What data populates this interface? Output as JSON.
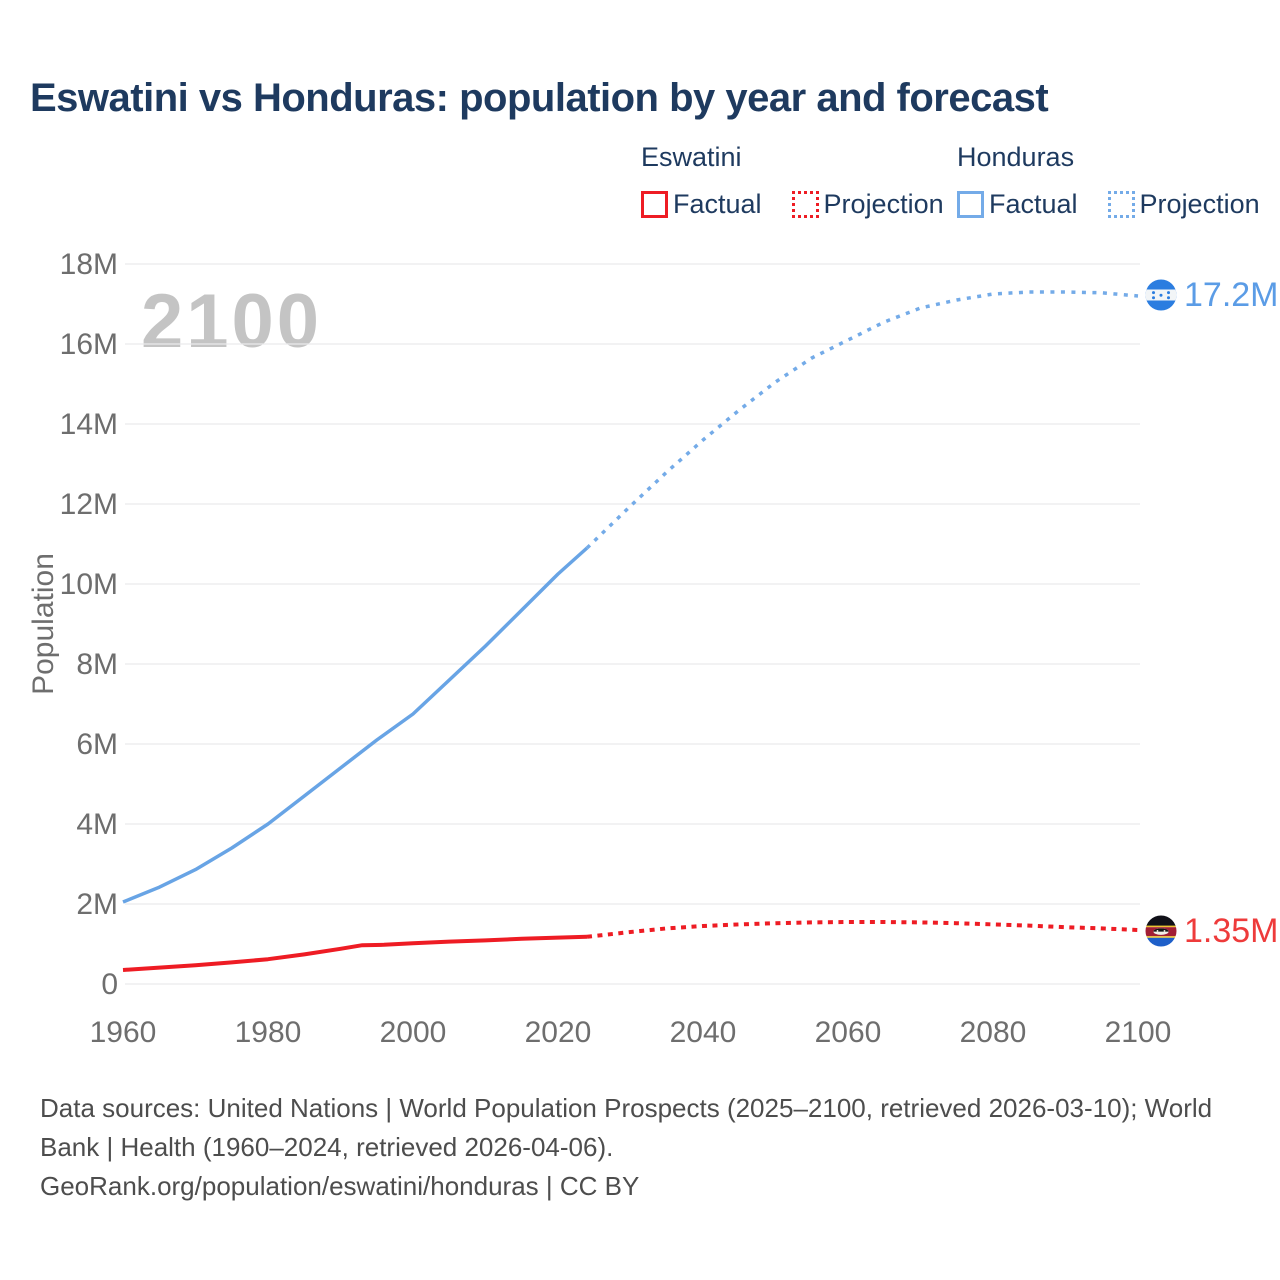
{
  "title": "Eswatini vs Honduras: population by year and forecast",
  "watermark_year": "2100",
  "legend": {
    "groups": [
      {
        "country": "Eswatini",
        "items": [
          {
            "label": "Factual",
            "style": "solid"
          },
          {
            "label": "Projection",
            "style": "dotted"
          }
        ]
      },
      {
        "country": "Honduras",
        "items": [
          {
            "label": "Factual",
            "style": "solid"
          },
          {
            "label": "Projection",
            "style": "dotted"
          }
        ]
      }
    ]
  },
  "colors": {
    "eswatini_line": "#ee1c24",
    "honduras_line": "#68a4e5",
    "title_text": "#1e3a5f",
    "axis_text": "#6e6e6e",
    "gridline": "#e9e9ec",
    "watermark": "#c4c4c4",
    "footer_text": "#4d4d4d"
  },
  "footer": {
    "sources": "Data sources: United Nations | World Population Prospects (2025–2100, retrieved 2026-03-10); World Bank | Health (1960–2024, retrieved 2026-04-06).",
    "link": "GeoRank.org/population/eswatini/honduras | CC BY"
  },
  "chart_data": {
    "type": "line",
    "title": "Eswatini vs Honduras: population by year and forecast",
    "xlabel": "",
    "ylabel": "Population",
    "xlim": [
      1960,
      2100
    ],
    "ylim_millions": [
      0,
      18
    ],
    "grid": "horizontal",
    "legend_position": "top-right",
    "xticks": [
      1960,
      1980,
      2000,
      2020,
      2040,
      2060,
      2080,
      2100
    ],
    "yticks": [
      {
        "value": 0,
        "label": "0"
      },
      {
        "value": 2,
        "label": "2M"
      },
      {
        "value": 4,
        "label": "4M"
      },
      {
        "value": 6,
        "label": "6M"
      },
      {
        "value": 8,
        "label": "8M"
      },
      {
        "value": 10,
        "label": "10M"
      },
      {
        "value": 12,
        "label": "12M"
      },
      {
        "value": 14,
        "label": "14M"
      },
      {
        "value": 16,
        "label": "16M"
      },
      {
        "value": 18,
        "label": "18M"
      }
    ],
    "units": "millions of people",
    "series": [
      {
        "name": "Honduras Factual",
        "style": "solid",
        "color": "#68a4e5",
        "width": 3.5,
        "points": [
          [
            1960,
            2.05
          ],
          [
            1965,
            2.42
          ],
          [
            1970,
            2.86
          ],
          [
            1975,
            3.4
          ],
          [
            1980,
            4.0
          ],
          [
            1985,
            4.7
          ],
          [
            1990,
            5.4
          ],
          [
            1995,
            6.1
          ],
          [
            2000,
            6.75
          ],
          [
            2005,
            7.6
          ],
          [
            2010,
            8.45
          ],
          [
            2015,
            9.35
          ],
          [
            2020,
            10.25
          ],
          [
            2024,
            10.9
          ]
        ]
      },
      {
        "name": "Honduras Projection",
        "style": "dotted",
        "color": "#74abe8",
        "width": 3.5,
        "dash": "4 6.5",
        "points": [
          [
            2024,
            10.9
          ],
          [
            2030,
            11.95
          ],
          [
            2035,
            12.8
          ],
          [
            2040,
            13.6
          ],
          [
            2045,
            14.35
          ],
          [
            2050,
            15.05
          ],
          [
            2055,
            15.65
          ],
          [
            2060,
            16.1
          ],
          [
            2065,
            16.55
          ],
          [
            2070,
            16.9
          ],
          [
            2075,
            17.1
          ],
          [
            2080,
            17.25
          ],
          [
            2085,
            17.3
          ],
          [
            2090,
            17.3
          ],
          [
            2095,
            17.28
          ],
          [
            2100,
            17.2
          ]
        ]
      },
      {
        "name": "Eswatini Factual",
        "style": "solid",
        "color": "#ee1c24",
        "width": 4,
        "points": [
          [
            1960,
            0.35
          ],
          [
            1965,
            0.41
          ],
          [
            1970,
            0.47
          ],
          [
            1975,
            0.54
          ],
          [
            1980,
            0.62
          ],
          [
            1985,
            0.74
          ],
          [
            1990,
            0.88
          ],
          [
            1993,
            0.97
          ],
          [
            1996,
            0.98
          ],
          [
            2000,
            1.02
          ],
          [
            2005,
            1.06
          ],
          [
            2010,
            1.09
          ],
          [
            2015,
            1.13
          ],
          [
            2020,
            1.16
          ],
          [
            2024,
            1.18
          ]
        ]
      },
      {
        "name": "Eswatini Projection",
        "style": "dotted",
        "color": "#ee1c24",
        "width": 4,
        "dash": "5 5.5",
        "points": [
          [
            2024,
            1.18
          ],
          [
            2030,
            1.3
          ],
          [
            2035,
            1.39
          ],
          [
            2040,
            1.45
          ],
          [
            2045,
            1.49
          ],
          [
            2050,
            1.52
          ],
          [
            2055,
            1.54
          ],
          [
            2060,
            1.55
          ],
          [
            2065,
            1.55
          ],
          [
            2070,
            1.54
          ],
          [
            2075,
            1.52
          ],
          [
            2080,
            1.49
          ],
          [
            2085,
            1.46
          ],
          [
            2090,
            1.42
          ],
          [
            2095,
            1.39
          ],
          [
            2100,
            1.35
          ]
        ]
      }
    ],
    "end_labels": [
      {
        "series": "Honduras",
        "year": 2100,
        "text": "17.2M",
        "color": "#5b9ce6"
      },
      {
        "series": "Eswatini",
        "year": 2100,
        "text": "1.35M",
        "color": "#ee3b3b"
      }
    ]
  }
}
